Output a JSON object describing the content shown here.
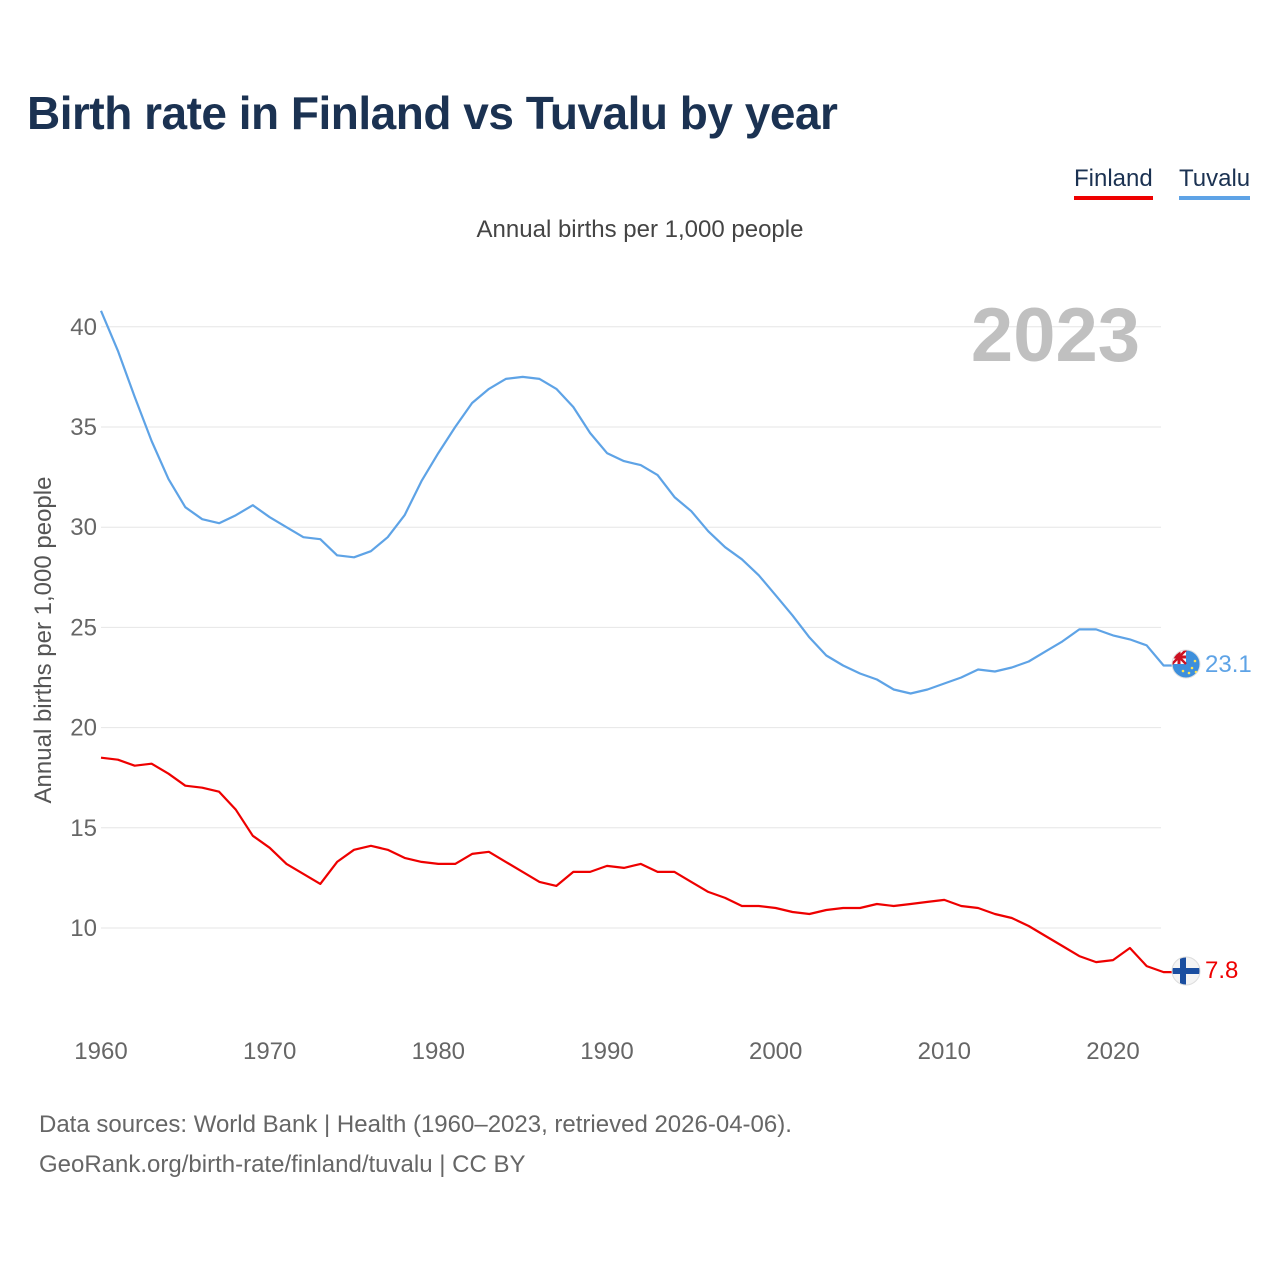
{
  "title": "Birth rate in Finland vs Tuvalu by year",
  "legend": [
    {
      "name": "Finland",
      "color": "#ee0000"
    },
    {
      "name": "Tuvalu",
      "color": "#5ea3e6"
    }
  ],
  "subtitle": "Annual births per 1,000 people",
  "footer": {
    "sources": "Data sources: World Bank | Health (1960–2023, retrieved 2026-04-06).",
    "link": "GeoRank.org/birth-rate/finland/tuvalu | CC BY"
  },
  "chart_data": {
    "type": "line",
    "title": "Birth rate in Finland vs Tuvalu by year",
    "xlabel": "",
    "ylabel": "Annual births per 1,000 people",
    "year_watermark": "2023",
    "xlim": [
      1960,
      2023
    ],
    "ylim": [
      7,
      41.5
    ],
    "grid": true,
    "y_ticks": [
      10,
      15,
      20,
      25,
      30,
      35,
      40
    ],
    "x_ticks": [
      1960,
      1970,
      1980,
      1990,
      2000,
      2010,
      2020
    ],
    "x": [
      1960,
      1961,
      1962,
      1963,
      1964,
      1965,
      1966,
      1967,
      1968,
      1969,
      1970,
      1971,
      1972,
      1973,
      1974,
      1975,
      1976,
      1977,
      1978,
      1979,
      1980,
      1981,
      1982,
      1983,
      1984,
      1985,
      1986,
      1987,
      1988,
      1989,
      1990,
      1991,
      1992,
      1993,
      1994,
      1995,
      1996,
      1997,
      1998,
      1999,
      2000,
      2001,
      2002,
      2003,
      2004,
      2005,
      2006,
      2007,
      2008,
      2009,
      2010,
      2011,
      2012,
      2013,
      2014,
      2015,
      2016,
      2017,
      2018,
      2019,
      2020,
      2021,
      2022,
      2023
    ],
    "series": [
      {
        "name": "Finland",
        "color": "#ee0000",
        "end_label": "7.8",
        "flag_icon": "finland-flag-icon",
        "values": [
          18.5,
          18.4,
          18.1,
          18.2,
          17.7,
          17.1,
          17.0,
          16.8,
          15.9,
          14.6,
          14.0,
          13.2,
          12.7,
          12.2,
          13.3,
          13.9,
          14.1,
          13.9,
          13.5,
          13.3,
          13.2,
          13.2,
          13.7,
          13.8,
          13.3,
          12.8,
          12.3,
          12.1,
          12.8,
          12.8,
          13.1,
          13.0,
          13.2,
          12.8,
          12.8,
          12.3,
          11.8,
          11.5,
          11.1,
          11.1,
          11.0,
          10.8,
          10.7,
          10.9,
          11.0,
          11.0,
          11.2,
          11.1,
          11.2,
          11.3,
          11.4,
          11.1,
          11.0,
          10.7,
          10.5,
          10.1,
          9.6,
          9.1,
          8.6,
          8.3,
          8.4,
          9.0,
          8.1,
          7.8
        ]
      },
      {
        "name": "Tuvalu",
        "color": "#5ea3e6",
        "end_label": "23.1",
        "flag_icon": "tuvalu-flag-icon",
        "values": [
          40.8,
          38.8,
          36.5,
          34.3,
          32.4,
          31.0,
          30.4,
          30.2,
          30.6,
          31.1,
          30.5,
          30.0,
          29.5,
          29.4,
          28.6,
          28.5,
          28.8,
          29.5,
          30.6,
          32.3,
          33.7,
          35.0,
          36.2,
          36.9,
          37.4,
          37.5,
          37.4,
          36.9,
          36.0,
          34.7,
          33.7,
          33.3,
          33.1,
          32.6,
          31.5,
          30.8,
          29.8,
          29.0,
          28.4,
          27.6,
          26.6,
          25.6,
          24.5,
          23.6,
          23.1,
          22.7,
          22.4,
          21.9,
          21.7,
          21.9,
          22.2,
          22.5,
          22.9,
          22.8,
          23.0,
          23.3,
          23.8,
          24.3,
          24.9,
          24.9,
          24.6,
          24.4,
          24.1,
          23.1
        ]
      }
    ]
  }
}
